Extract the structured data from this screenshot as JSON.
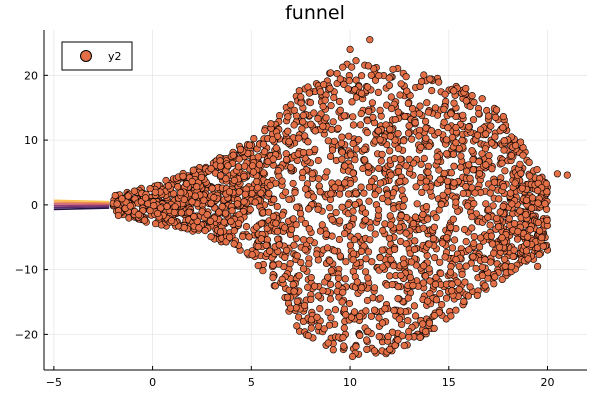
{
  "chart_data": {
    "type": "scatter",
    "title": "funnel",
    "xlabel": "",
    "ylabel": "",
    "xlim": [
      -5.5,
      22
    ],
    "ylim": [
      -25.5,
      27
    ],
    "xticks": [
      -5,
      0,
      5,
      10,
      15,
      20
    ],
    "xtick_labels": [
      "−5",
      "0",
      "5",
      "10",
      "15",
      "20"
    ],
    "yticks": [
      -20,
      -10,
      0,
      10,
      20
    ],
    "ytick_labels": [
      "−20",
      "−10",
      "0",
      "10",
      "20"
    ],
    "grid": true,
    "legend": {
      "position": "top-left",
      "entries": [
        "y2"
      ]
    },
    "series": [
      {
        "name": "y2",
        "kind": "scatter",
        "marker_color": "#e26f46",
        "marker_edge": "#000000",
        "description": "dense funnel-shaped point cloud widening from x≈-2 to x≈20",
        "envelope": [
          {
            "x": -2,
            "y_min": -1.5,
            "y_max": 1.5
          },
          {
            "x": 0,
            "y_min": -3,
            "y_max": 3
          },
          {
            "x": 2.5,
            "y_min": -4.5,
            "y_max": 6
          },
          {
            "x": 5,
            "y_min": -8,
            "y_max": 10
          },
          {
            "x": 6.5,
            "y_min": -14,
            "y_max": 14
          },
          {
            "x": 7.5,
            "y_min": -20,
            "y_max": 18
          },
          {
            "x": 8.5,
            "y_min": -22,
            "y_max": 20
          },
          {
            "x": 10,
            "y_min": -23.5,
            "y_max": 22.5
          },
          {
            "x": 12,
            "y_min": -23,
            "y_max": 21.5
          },
          {
            "x": 14,
            "y_min": -20,
            "y_max": 20
          },
          {
            "x": 16,
            "y_min": -15,
            "y_max": 18
          },
          {
            "x": 17.5,
            "y_min": -12,
            "y_max": 15
          },
          {
            "x": 19,
            "y_min": -9,
            "y_max": 8
          },
          {
            "x": 20,
            "y_min": -7,
            "y_max": 3
          }
        ],
        "outliers": [
          {
            "x": 20.5,
            "y": 4.8
          },
          {
            "x": 21,
            "y": 4.6
          },
          {
            "x": 19.5,
            "y": 2.2
          },
          {
            "x": 11,
            "y": 25.5
          },
          {
            "x": 10,
            "y": 24
          },
          {
            "x": 19.5,
            "y": -9.5
          }
        ]
      },
      {
        "name": "",
        "kind": "funnel-band",
        "description": "thin colored funnel lines from x≈-5 to x≈-2",
        "x_range": [
          -5,
          -2.2
        ],
        "half_width_start": 0.7,
        "half_width_end": 0.5,
        "colors": [
          "#23154a",
          "#5c2a6e",
          "#8e3e72",
          "#c7576a",
          "#f08c50",
          "#f9c24a"
        ]
      }
    ]
  }
}
